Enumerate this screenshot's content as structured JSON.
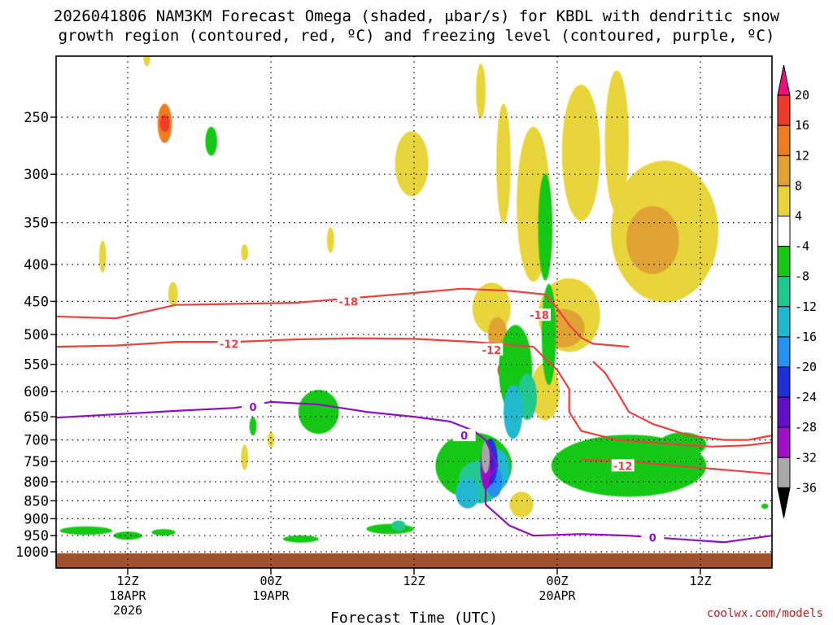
{
  "title_line1": "2026041806 NAM3KM Forecast Omega (shaded, μbar/s) for KBDL with dendritic snow",
  "title_line2": "growth region (contoured, red, ºC) and freezing level (contoured, purple, ºC)",
  "credit": "coolwx.com/models",
  "chart_data": {
    "type": "heatmap",
    "xlabel": "Forecast Time (UTC)",
    "ylabel": "",
    "x_ticks": [
      {
        "label": "12Z",
        "sub1": "18APR",
        "sub2": "2026",
        "hour": 6
      },
      {
        "label": "00Z",
        "sub1": "19APR",
        "sub2": "",
        "hour": 18
      },
      {
        "label": "12Z",
        "sub1": "",
        "sub2": "",
        "hour": 30
      },
      {
        "label": "00Z",
        "sub1": "20APR",
        "sub2": "",
        "hour": 42
      },
      {
        "label": "12Z",
        "sub1": "",
        "sub2": "",
        "hour": 54
      }
    ],
    "x_range_hours": [
      0,
      60
    ],
    "y_scale": "log-pressure",
    "y_ticks_hpa": [
      250,
      300,
      350,
      400,
      450,
      500,
      550,
      600,
      650,
      700,
      750,
      800,
      850,
      900,
      950,
      1000
    ],
    "y_range_hpa": [
      200,
      1010
    ],
    "colorbar": {
      "labels": [
        "20",
        "16",
        "12",
        "8",
        "4",
        "-4",
        "-8",
        "-12",
        "-16",
        "-20",
        "-24",
        "-28",
        "-32",
        "-36"
      ],
      "colors": [
        "#e8107a",
        "#ee3a2a",
        "#ee7d22",
        "#e0a232",
        "#e8d43a",
        "#ffffff",
        "#18c818",
        "#20c890",
        "#20b8d0",
        "#2890f0",
        "#2030d8",
        "#6010c8",
        "#a010c8",
        "#a8a8a8",
        "#000000"
      ]
    },
    "contour_labels": {
      "red": [
        "-18",
        "-18",
        "-12",
        "-12",
        "-12"
      ],
      "purple": [
        "0",
        "0",
        "0"
      ]
    },
    "contours": {
      "red_minus18": [
        [
          0,
          472
        ],
        [
          5,
          475
        ],
        [
          10,
          455
        ],
        [
          20,
          452
        ],
        [
          25,
          445
        ],
        [
          30,
          438
        ],
        [
          34,
          432
        ],
        [
          38,
          435
        ],
        [
          41,
          440
        ],
        [
          42,
          460
        ],
        [
          43,
          485
        ],
        [
          44,
          505
        ],
        [
          45,
          515
        ],
        [
          48,
          520
        ]
      ],
      "red_minus12": [
        [
          0,
          520
        ],
        [
          5,
          518
        ],
        [
          10,
          512
        ],
        [
          15,
          512
        ],
        [
          20,
          508
        ],
        [
          25,
          506
        ],
        [
          30,
          507
        ],
        [
          35,
          512
        ],
        [
          40,
          520
        ],
        [
          41,
          540
        ],
        [
          42,
          560
        ],
        [
          43,
          595
        ],
        [
          43,
          640
        ],
        [
          44,
          680
        ],
        [
          47,
          700
        ],
        [
          52,
          710
        ],
        [
          55,
          715
        ],
        [
          58,
          712
        ],
        [
          60,
          705
        ]
      ],
      "red_minus12b": [
        [
          45,
          545
        ],
        [
          46,
          565
        ],
        [
          47,
          600
        ],
        [
          48,
          640
        ],
        [
          50,
          665
        ],
        [
          53,
          690
        ],
        [
          56,
          700
        ],
        [
          58,
          700
        ],
        [
          60,
          690
        ]
      ],
      "red_minus12c": [
        [
          44,
          745
        ],
        [
          48,
          750
        ],
        [
          52,
          760
        ],
        [
          56,
          770
        ],
        [
          60,
          780
        ]
      ],
      "purple_zero": [
        [
          0,
          652
        ],
        [
          5,
          645
        ],
        [
          10,
          638
        ],
        [
          15,
          632
        ],
        [
          18,
          620
        ],
        [
          22,
          625
        ],
        [
          26,
          640
        ],
        [
          30,
          650
        ],
        [
          33,
          660
        ],
        [
          35,
          680
        ],
        [
          36,
          700
        ],
        [
          37,
          760
        ],
        [
          36,
          800
        ],
        [
          36,
          860
        ],
        [
          38,
          920
        ],
        [
          40,
          950
        ],
        [
          44,
          945
        ],
        [
          48,
          950
        ],
        [
          52,
          960
        ],
        [
          56,
          970
        ],
        [
          60,
          950
        ]
      ]
    },
    "ground_hpa": 1005,
    "ground_color": "#a0522d",
    "omega_blobs": [
      {
        "t": 9.1,
        "p": 255,
        "dt": 0.6,
        "dp": 32,
        "v": 12
      },
      {
        "t": 9.1,
        "p": 255,
        "dt": 0.4,
        "dp": 14,
        "v": 16
      },
      {
        "t": 7.6,
        "p": 205,
        "dt": 0.3,
        "dp": 15,
        "v": 5
      },
      {
        "t": 13.0,
        "p": 270,
        "dt": 0.5,
        "dp": 25,
        "v": -6
      },
      {
        "t": 3.9,
        "p": 390,
        "dt": 0.3,
        "dp": 40,
        "v": 5
      },
      {
        "t": 9.8,
        "p": 440,
        "dt": 0.4,
        "dp": 35,
        "v": 5
      },
      {
        "t": 23.0,
        "p": 370,
        "dt": 0.3,
        "dp": 30,
        "v": 5
      },
      {
        "t": 15.8,
        "p": 385,
        "dt": 0.3,
        "dp": 20,
        "v": 5
      },
      {
        "t": 29.8,
        "p": 290,
        "dt": 1.4,
        "dp": 60,
        "v": 5
      },
      {
        "t": 35.6,
        "p": 230,
        "dt": 0.4,
        "dp": 40,
        "v": 5
      },
      {
        "t": 37.5,
        "p": 290,
        "dt": 0.6,
        "dp": 110,
        "v": 5
      },
      {
        "t": 36.5,
        "p": 460,
        "dt": 1.6,
        "dp": 75,
        "v": 5
      },
      {
        "t": 37.0,
        "p": 500,
        "dt": 0.8,
        "dp": 55,
        "v": 8
      },
      {
        "t": 37.4,
        "p": 560,
        "dt": 0.4,
        "dp": 25,
        "v": 16
      },
      {
        "t": 40.0,
        "p": 330,
        "dt": 1.4,
        "dp": 160,
        "v": 5
      },
      {
        "t": 44.0,
        "p": 280,
        "dt": 1.6,
        "dp": 120,
        "v": 5
      },
      {
        "t": 47.0,
        "p": 270,
        "dt": 1.0,
        "dp": 120,
        "v": 5
      },
      {
        "t": 51.0,
        "p": 360,
        "dt": 4.5,
        "dp": 160,
        "v": 5
      },
      {
        "t": 50.0,
        "p": 370,
        "dt": 2.2,
        "dp": 80,
        "v": 8
      },
      {
        "t": 43.0,
        "p": 470,
        "dt": 2.6,
        "dp": 110,
        "v": 5
      },
      {
        "t": 42.5,
        "p": 490,
        "dt": 1.8,
        "dp": 60,
        "v": 8
      },
      {
        "t": 41.0,
        "p": 600,
        "dt": 1.2,
        "dp": 110,
        "v": 5
      },
      {
        "t": 39.0,
        "p": 860,
        "dt": 1.0,
        "dp": 70,
        "v": 5
      },
      {
        "t": 15.8,
        "p": 740,
        "dt": 0.3,
        "dp": 60,
        "v": 5
      },
      {
        "t": 18.0,
        "p": 700,
        "dt": 0.3,
        "dp": 35,
        "v": 5
      },
      {
        "t": 41.0,
        "p": 355,
        "dt": 0.6,
        "dp": 120,
        "v": -6
      },
      {
        "t": 41.3,
        "p": 500,
        "dt": 0.6,
        "dp": 160,
        "v": -6
      },
      {
        "t": 38.5,
        "p": 560,
        "dt": 1.4,
        "dp": 160,
        "v": -6
      },
      {
        "t": 35.0,
        "p": 760,
        "dt": 3.2,
        "dp": 160,
        "v": -6
      },
      {
        "t": 22.0,
        "p": 640,
        "dt": 1.7,
        "dp": 90,
        "v": -6
      },
      {
        "t": 28.0,
        "p": 930,
        "dt": 2.0,
        "dp": 30,
        "v": -6
      },
      {
        "t": 20.5,
        "p": 960,
        "dt": 1.5,
        "dp": 22,
        "v": -6
      },
      {
        "t": 2.5,
        "p": 935,
        "dt": 2.2,
        "dp": 25,
        "v": -6
      },
      {
        "t": 6.0,
        "p": 950,
        "dt": 1.2,
        "dp": 25,
        "v": -6
      },
      {
        "t": 9.0,
        "p": 940,
        "dt": 1.0,
        "dp": 20,
        "v": -6
      },
      {
        "t": 16.5,
        "p": 670,
        "dt": 0.3,
        "dp": 40,
        "v": -6
      },
      {
        "t": 48.0,
        "p": 760,
        "dt": 6.5,
        "dp": 150,
        "v": -6
      },
      {
        "t": 52.5,
        "p": 710,
        "dt": 2.0,
        "dp": 55,
        "v": -6
      },
      {
        "t": 59.4,
        "p": 865,
        "dt": 0.3,
        "dp": 15,
        "v": -6
      },
      {
        "t": 39.5,
        "p": 610,
        "dt": 0.8,
        "dp": 90,
        "v": -10
      },
      {
        "t": 38.3,
        "p": 640,
        "dt": 0.8,
        "dp": 110,
        "v": -14
      },
      {
        "t": 35.5,
        "p": 800,
        "dt": 1.8,
        "dp": 110,
        "v": -10
      },
      {
        "t": 34.5,
        "p": 830,
        "dt": 1.0,
        "dp": 80,
        "v": -14
      },
      {
        "t": 37.0,
        "p": 770,
        "dt": 1.0,
        "dp": 100,
        "v": -16
      },
      {
        "t": 36.7,
        "p": 800,
        "dt": 0.7,
        "dp": 80,
        "v": -20
      },
      {
        "t": 36.4,
        "p": 750,
        "dt": 0.6,
        "dp": 110,
        "v": -24
      },
      {
        "t": 36.1,
        "p": 760,
        "dt": 0.5,
        "dp": 110,
        "v": -28
      },
      {
        "t": 36.0,
        "p": 765,
        "dt": 0.42,
        "dp": 105,
        "v": -32
      },
      {
        "t": 36.0,
        "p": 740,
        "dt": 0.34,
        "dp": 75,
        "v": -36
      },
      {
        "t": 28.7,
        "p": 920,
        "dt": 0.6,
        "dp": 30,
        "v": -10
      }
    ]
  }
}
